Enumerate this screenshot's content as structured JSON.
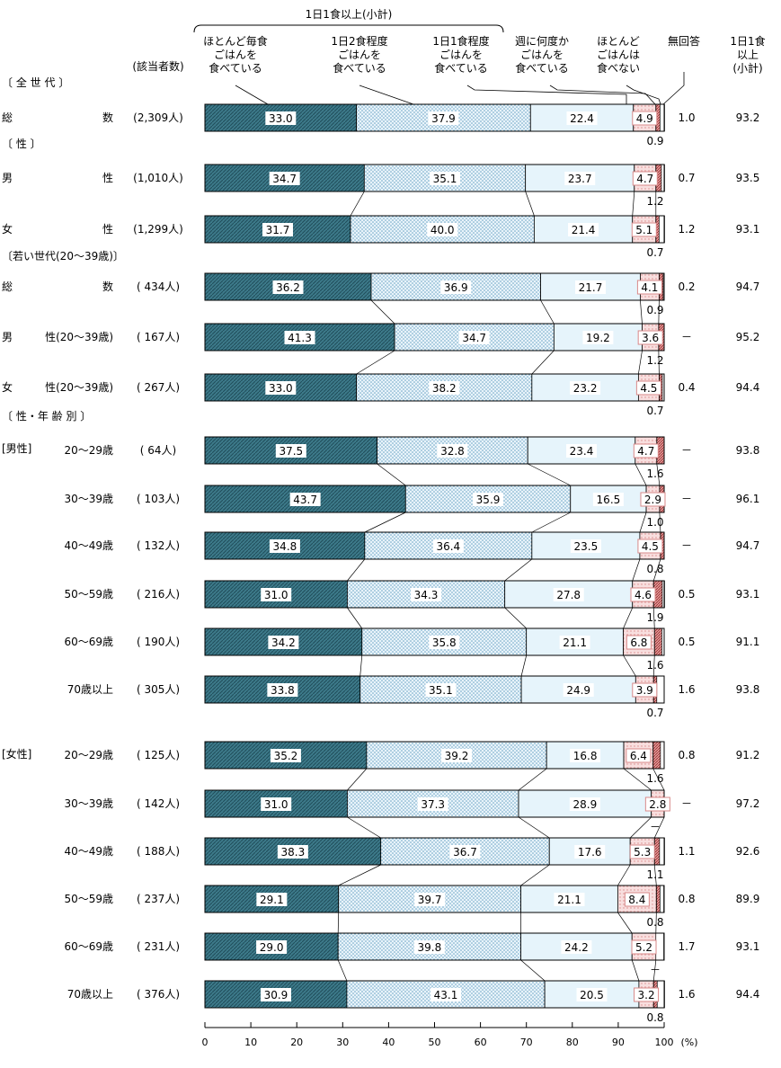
{
  "chart_data": {
    "type": "bar",
    "orientation": "horizontal",
    "stacked": true,
    "unit": "(%)",
    "xlim": [
      0,
      100
    ],
    "xticks": [
      "0",
      "10",
      "20",
      "30",
      "40",
      "50",
      "60",
      "70",
      "80",
      "90",
      "100"
    ],
    "header": {
      "bracket_label": "1日1食以上(小計)",
      "count_header": "(該当者数)",
      "subtotal_header": [
        "1日1食",
        "以上",
        "(小計)"
      ]
    },
    "categories": [
      {
        "name": "ほとんど毎食ごはんを食べている",
        "lines": [
          "ほとんど毎食",
          "ごはんを",
          "食べている"
        ],
        "color": "#3d7a8a"
      },
      {
        "name": "1日2食程度ごはんを食べている",
        "lines": [
          "1日2食程度",
          "ごはんを",
          "食べている"
        ],
        "color": "#cfe6f3"
      },
      {
        "name": "1日1食程度ごはんを食べている",
        "lines": [
          "1日1食程度",
          "ごはんを",
          "食べている"
        ],
        "color": "#e4f3fb"
      },
      {
        "name": "週に何度かごはんを食べている",
        "lines": [
          "週に何度か",
          "ごはんを",
          "食べている"
        ],
        "color": "#f6d8d8"
      },
      {
        "name": "ほとんどごはんは食べない",
        "lines": [
          "ほとんど",
          "ごはんは",
          "食べない"
        ],
        "color": "#d98a8a"
      },
      {
        "name": "無回答",
        "lines": [
          "無回答"
        ],
        "color": "#ffffff"
      }
    ],
    "sections": {
      "all": "〔 全 世 代 〕",
      "sex": "〔  性  〕",
      "young": "〔若い世代(20～39歳)〕",
      "sexage": "〔 性・年 齢 別 〕",
      "male": "[男性]",
      "female": "[女性]"
    },
    "rows": [
      {
        "label": "総 数",
        "count": "(2,309人)",
        "values": [
          33.0,
          37.9,
          22.4,
          4.9,
          0.9,
          1.0
        ],
        "subtotal": "93.2"
      },
      {
        "label": "男 性",
        "count": "(1,010人)",
        "values": [
          34.7,
          35.1,
          23.7,
          4.7,
          1.2,
          0.7
        ],
        "subtotal": "93.5"
      },
      {
        "label": "女 性",
        "count": "(1,299人)",
        "values": [
          31.7,
          40.0,
          21.4,
          5.1,
          0.7,
          1.2
        ],
        "subtotal": "93.1"
      },
      {
        "label": "総 数",
        "count": "( 434人)",
        "values": [
          36.2,
          36.9,
          21.7,
          4.1,
          0.9,
          0.2
        ],
        "subtotal": "94.7"
      },
      {
        "label": "男 性(20～39歳)",
        "count": "( 167人)",
        "values": [
          41.3,
          34.7,
          19.2,
          3.6,
          1.2,
          0.0
        ],
        "nores_text": "－",
        "subtotal": "95.2"
      },
      {
        "label": "女 性(20～39歳)",
        "count": "( 267人)",
        "values": [
          33.0,
          38.2,
          23.2,
          4.5,
          0.7,
          0.4
        ],
        "subtotal": "94.4"
      },
      {
        "label": "20～29歳",
        "count": "( 64人)",
        "values": [
          37.5,
          32.8,
          23.4,
          4.7,
          1.6,
          0.0
        ],
        "nores_text": "－",
        "subtotal": "93.8"
      },
      {
        "label": "30～39歳",
        "count": "( 103人)",
        "values": [
          43.7,
          35.9,
          16.5,
          2.9,
          1.0,
          0.0
        ],
        "nores_text": "－",
        "subtotal": "96.1"
      },
      {
        "label": "40～49歳",
        "count": "( 132人)",
        "values": [
          34.8,
          36.4,
          23.5,
          4.5,
          0.8,
          0.0
        ],
        "nores_text": "－",
        "subtotal": "94.7"
      },
      {
        "label": "50～59歳",
        "count": "( 216人)",
        "values": [
          31.0,
          34.3,
          27.8,
          4.6,
          1.9,
          0.5
        ],
        "subtotal": "93.1"
      },
      {
        "label": "60～69歳",
        "count": "( 190人)",
        "values": [
          34.2,
          35.8,
          21.1,
          6.8,
          1.6,
          0.5
        ],
        "subtotal": "91.1"
      },
      {
        "label": "70歳以上",
        "count": "( 305人)",
        "values": [
          33.8,
          35.1,
          24.9,
          3.9,
          0.7,
          1.6
        ],
        "subtotal": "93.8"
      },
      {
        "label": "20～29歳",
        "count": "( 125人)",
        "values": [
          35.2,
          39.2,
          16.8,
          6.4,
          1.6,
          0.8
        ],
        "subtotal": "91.2"
      },
      {
        "label": "30～39歳",
        "count": "( 142人)",
        "values": [
          31.0,
          37.3,
          28.9,
          2.8,
          0.0,
          0.0
        ],
        "small_text": "－",
        "nores_text": "－",
        "subtotal": "97.2"
      },
      {
        "label": "40～49歳",
        "count": "( 188人)",
        "values": [
          38.3,
          36.7,
          17.6,
          5.3,
          1.1,
          1.1
        ],
        "subtotal": "92.6"
      },
      {
        "label": "50～59歳",
        "count": "( 237人)",
        "values": [
          29.1,
          39.7,
          21.1,
          8.4,
          0.8,
          0.8
        ],
        "subtotal": "89.9"
      },
      {
        "label": "60～69歳",
        "count": "( 231人)",
        "values": [
          29.0,
          39.8,
          24.2,
          5.2,
          0.0,
          1.7
        ],
        "small_text": "－",
        "subtotal": "93.1"
      },
      {
        "label": "70歳以上",
        "count": "( 376人)",
        "values": [
          30.9,
          43.1,
          20.5,
          3.2,
          0.8,
          1.6
        ],
        "subtotal": "94.4"
      }
    ]
  }
}
